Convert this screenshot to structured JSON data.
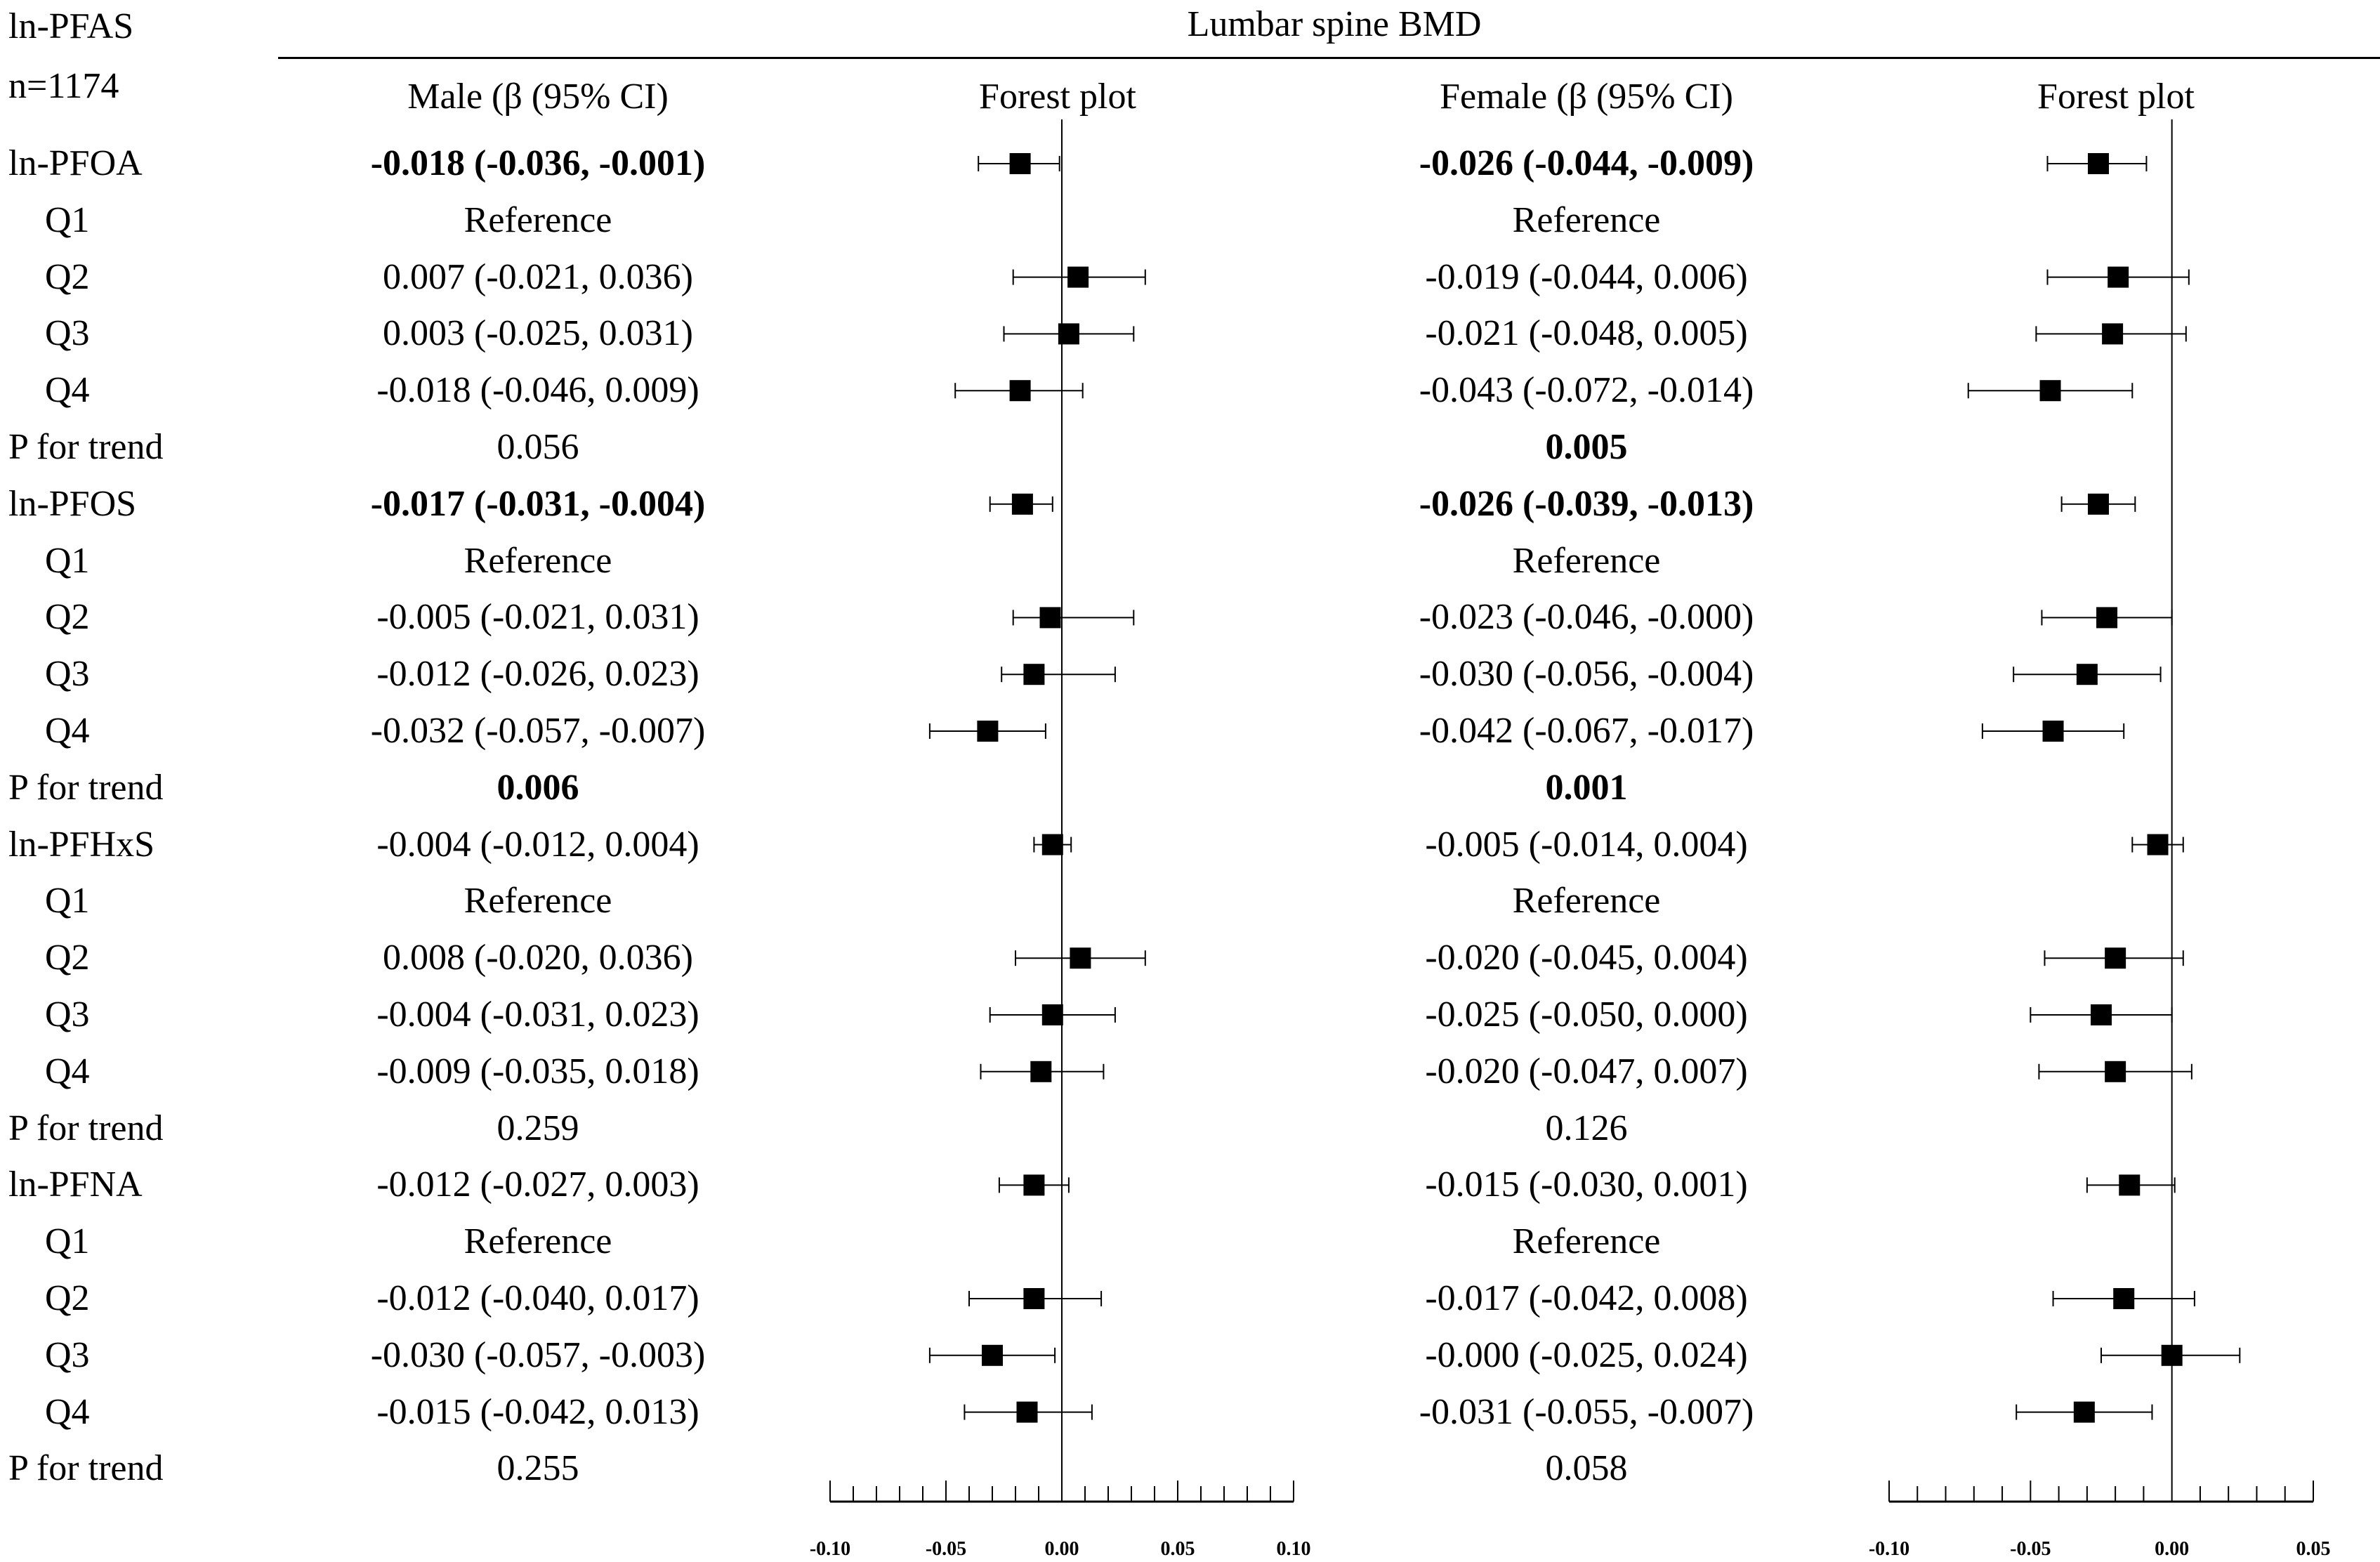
{
  "header": {
    "pfas_label": "ln-PFAS",
    "n_label": "n=1174",
    "outcome_title": "Lumbar spine BMD",
    "male_col": "Male (β (95% CI)",
    "female_col": "Female (β (95% CI)",
    "forest_col_male": "Forest plot",
    "forest_col_female": "Forest plot"
  },
  "rows": [
    {
      "label": "ln-PFOA",
      "indent": false,
      "male": "-0.018 (-0.036, -0.001)",
      "male_bold": true,
      "female": "-0.026 (-0.044, -0.009)",
      "female_bold": true
    },
    {
      "label": "Q1",
      "indent": true,
      "male": "Reference",
      "male_bold": false,
      "female": "Reference",
      "female_bold": false
    },
    {
      "label": "Q2",
      "indent": true,
      "male": "0.007 (-0.021, 0.036)",
      "male_bold": false,
      "female": "-0.019 (-0.044, 0.006)",
      "female_bold": false
    },
    {
      "label": "Q3",
      "indent": true,
      "male": "0.003 (-0.025, 0.031)",
      "male_bold": false,
      "female": "-0.021 (-0.048, 0.005)",
      "female_bold": false
    },
    {
      "label": "Q4",
      "indent": true,
      "male": "-0.018 (-0.046, 0.009)",
      "male_bold": false,
      "female": "-0.043 (-0.072, -0.014)",
      "female_bold": false
    },
    {
      "label": "P for trend",
      "indent": false,
      "male": "0.056",
      "male_bold": false,
      "female": "0.005",
      "female_bold": true
    },
    {
      "label": "ln-PFOS",
      "indent": false,
      "male": "-0.017 (-0.031, -0.004)",
      "male_bold": true,
      "female": "-0.026 (-0.039, -0.013)",
      "female_bold": true
    },
    {
      "label": "Q1",
      "indent": true,
      "male": "Reference",
      "male_bold": false,
      "female": "Reference",
      "female_bold": false
    },
    {
      "label": "Q2",
      "indent": true,
      "male": "-0.005 (-0.021, 0.031)",
      "male_bold": false,
      "female": "-0.023 (-0.046, -0.000)",
      "female_bold": false
    },
    {
      "label": "Q3",
      "indent": true,
      "male": "-0.012 (-0.026, 0.023)",
      "male_bold": false,
      "female": "-0.030 (-0.056, -0.004)",
      "female_bold": false
    },
    {
      "label": "Q4",
      "indent": true,
      "male": "-0.032 (-0.057, -0.007)",
      "male_bold": false,
      "female": "-0.042 (-0.067, -0.017)",
      "female_bold": false
    },
    {
      "label": "P for trend",
      "indent": false,
      "male": "0.006",
      "male_bold": true,
      "female": "0.001",
      "female_bold": true
    },
    {
      "label": "ln-PFHxS",
      "indent": false,
      "male": "-0.004 (-0.012, 0.004)",
      "male_bold": false,
      "female": "-0.005 (-0.014, 0.004)",
      "female_bold": false
    },
    {
      "label": "Q1",
      "indent": true,
      "male": "Reference",
      "male_bold": false,
      "female": "Reference",
      "female_bold": false
    },
    {
      "label": "Q2",
      "indent": true,
      "male": "0.008 (-0.020, 0.036)",
      "male_bold": false,
      "female": "-0.020 (-0.045, 0.004)",
      "female_bold": false
    },
    {
      "label": "Q3",
      "indent": true,
      "male": "-0.004 (-0.031, 0.023)",
      "male_bold": false,
      "female": "-0.025 (-0.050, 0.000)",
      "female_bold": false
    },
    {
      "label": "Q4",
      "indent": true,
      "male": "-0.009 (-0.035, 0.018)",
      "male_bold": false,
      "female": "-0.020 (-0.047, 0.007)",
      "female_bold": false
    },
    {
      "label": "P for trend",
      "indent": false,
      "male": "0.259",
      "male_bold": false,
      "female": "0.126",
      "female_bold": false
    },
    {
      "label": "ln-PFNA",
      "indent": false,
      "male": "-0.012 (-0.027, 0.003)",
      "male_bold": false,
      "female": "-0.015 (-0.030, 0.001)",
      "female_bold": false
    },
    {
      "label": "Q1",
      "indent": true,
      "male": "Reference",
      "male_bold": false,
      "female": "Reference",
      "female_bold": false
    },
    {
      "label": "Q2",
      "indent": true,
      "male": "-0.012 (-0.040, 0.017)",
      "male_bold": false,
      "female": "-0.017 (-0.042, 0.008)",
      "female_bold": false
    },
    {
      "label": "Q3",
      "indent": true,
      "male": "-0.030 (-0.057, -0.003)",
      "male_bold": false,
      "female": "-0.000 (-0.025, 0.024)",
      "female_bold": false
    },
    {
      "label": "Q4",
      "indent": true,
      "male": "-0.015 (-0.042, 0.013)",
      "male_bold": false,
      "female": "-0.031 (-0.055, -0.007)",
      "female_bold": false
    },
    {
      "label": "P for trend",
      "indent": false,
      "male": "0.255",
      "male_bold": false,
      "female": "0.058",
      "female_bold": false
    }
  ],
  "chart_data": [
    {
      "type": "forest",
      "title": "Forest plot",
      "group": "Male",
      "xlim": [
        -0.1,
        0.1
      ],
      "ticks": [
        "-0.10",
        "-0.05",
        "0.00",
        "0.05",
        "0.10"
      ],
      "tick_values": [
        -0.1,
        -0.05,
        0.0,
        0.05,
        0.1
      ],
      "reference_line": 0,
      "points": [
        {
          "row": 0,
          "est": -0.018,
          "lo": -0.036,
          "hi": -0.001
        },
        {
          "row": 2,
          "est": 0.007,
          "lo": -0.021,
          "hi": 0.036
        },
        {
          "row": 3,
          "est": 0.003,
          "lo": -0.025,
          "hi": 0.031
        },
        {
          "row": 4,
          "est": -0.018,
          "lo": -0.046,
          "hi": 0.009
        },
        {
          "row": 6,
          "est": -0.017,
          "lo": -0.031,
          "hi": -0.004
        },
        {
          "row": 8,
          "est": -0.005,
          "lo": -0.021,
          "hi": 0.031
        },
        {
          "row": 9,
          "est": -0.012,
          "lo": -0.026,
          "hi": 0.023
        },
        {
          "row": 10,
          "est": -0.032,
          "lo": -0.057,
          "hi": -0.007
        },
        {
          "row": 12,
          "est": -0.004,
          "lo": -0.012,
          "hi": 0.004
        },
        {
          "row": 14,
          "est": 0.008,
          "lo": -0.02,
          "hi": 0.036
        },
        {
          "row": 15,
          "est": -0.004,
          "lo": -0.031,
          "hi": 0.023
        },
        {
          "row": 16,
          "est": -0.009,
          "lo": -0.035,
          "hi": 0.018
        },
        {
          "row": 18,
          "est": -0.012,
          "lo": -0.027,
          "hi": 0.003
        },
        {
          "row": 20,
          "est": -0.012,
          "lo": -0.04,
          "hi": 0.017
        },
        {
          "row": 21,
          "est": -0.03,
          "lo": -0.057,
          "hi": -0.003
        },
        {
          "row": 22,
          "est": -0.015,
          "lo": -0.042,
          "hi": 0.013
        }
      ]
    },
    {
      "type": "forest",
      "title": "Forest plot",
      "group": "Female",
      "xlim": [
        -0.1,
        0.05
      ],
      "ticks": [
        "-0.10",
        "-0.05",
        "0.00",
        "0.05"
      ],
      "tick_values": [
        -0.1,
        -0.05,
        0.0,
        0.05
      ],
      "reference_line": 0,
      "points": [
        {
          "row": 0,
          "est": -0.026,
          "lo": -0.044,
          "hi": -0.009
        },
        {
          "row": 2,
          "est": -0.019,
          "lo": -0.044,
          "hi": 0.006
        },
        {
          "row": 3,
          "est": -0.021,
          "lo": -0.048,
          "hi": 0.005
        },
        {
          "row": 4,
          "est": -0.043,
          "lo": -0.072,
          "hi": -0.014
        },
        {
          "row": 6,
          "est": -0.026,
          "lo": -0.039,
          "hi": -0.013
        },
        {
          "row": 8,
          "est": -0.023,
          "lo": -0.046,
          "hi": -0.0
        },
        {
          "row": 9,
          "est": -0.03,
          "lo": -0.056,
          "hi": -0.004
        },
        {
          "row": 10,
          "est": -0.042,
          "lo": -0.067,
          "hi": -0.017
        },
        {
          "row": 12,
          "est": -0.005,
          "lo": -0.014,
          "hi": 0.004
        },
        {
          "row": 14,
          "est": -0.02,
          "lo": -0.045,
          "hi": 0.004
        },
        {
          "row": 15,
          "est": -0.025,
          "lo": -0.05,
          "hi": 0.0
        },
        {
          "row": 16,
          "est": -0.02,
          "lo": -0.047,
          "hi": 0.007
        },
        {
          "row": 18,
          "est": -0.015,
          "lo": -0.03,
          "hi": 0.001
        },
        {
          "row": 20,
          "est": -0.017,
          "lo": -0.042,
          "hi": 0.008
        },
        {
          "row": 21,
          "est": -0.0,
          "lo": -0.025,
          "hi": 0.024
        },
        {
          "row": 22,
          "est": -0.031,
          "lo": -0.055,
          "hi": -0.007
        }
      ]
    }
  ]
}
